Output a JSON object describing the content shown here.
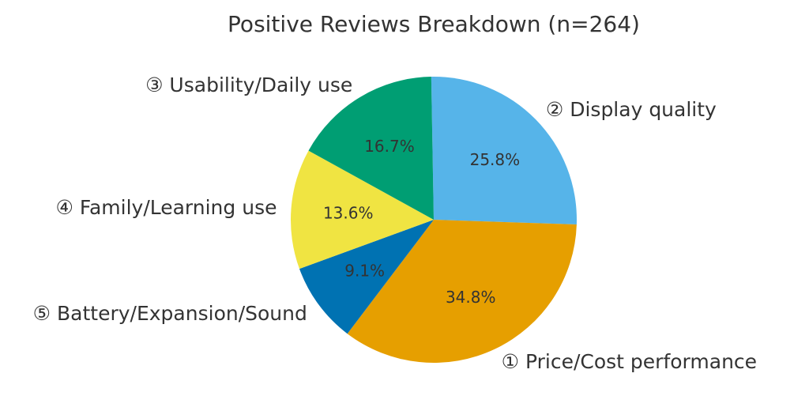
{
  "chart_data": {
    "type": "pie",
    "title": "Positive Reviews Breakdown (n=264)",
    "start_angle_deg": 91,
    "direction": "clockwise",
    "slices": [
      {
        "label": "② Display quality",
        "value": 25.8,
        "pct_label": "25.8%",
        "color": "#56B4E9"
      },
      {
        "label": "① Price/Cost performance",
        "value": 34.8,
        "pct_label": "34.8%",
        "color": "#E69F00"
      },
      {
        "label": "⑤ Battery/Expansion/Sound",
        "value": 9.1,
        "pct_label": "9.1%",
        "color": "#0072B2"
      },
      {
        "label": "④ Family/Learning use",
        "value": 13.6,
        "pct_label": "13.6%",
        "color": "#F0E442"
      },
      {
        "label": "③ Usability/Daily use",
        "value": 16.7,
        "pct_label": "16.7%",
        "color": "#009E73"
      }
    ]
  }
}
